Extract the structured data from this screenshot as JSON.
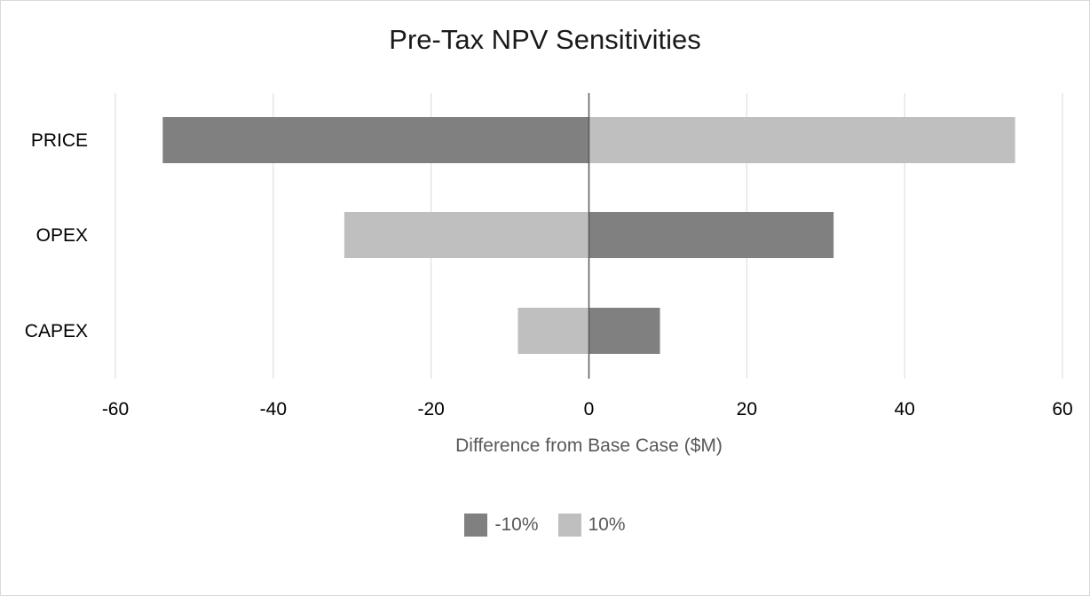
{
  "chart_data": {
    "type": "bar",
    "orientation": "horizontal",
    "title": "Pre-Tax NPV Sensitivities",
    "xlabel": "Difference from Base Case ($M)",
    "ylabel": "",
    "categories": [
      "PRICE",
      "OPEX",
      "CAPEX"
    ],
    "series": [
      {
        "name": "-10%",
        "color": "#808080",
        "values": [
          -54,
          31,
          9
        ]
      },
      {
        "name": "10%",
        "color": "#bfbfbf",
        "values": [
          54,
          -31,
          -9
        ]
      }
    ],
    "xlim": [
      -60,
      60
    ],
    "xticks": [
      "-60",
      "-40",
      "-20",
      "0",
      "20",
      "40",
      "60"
    ],
    "grid": true,
    "legend_position": "bottom"
  }
}
